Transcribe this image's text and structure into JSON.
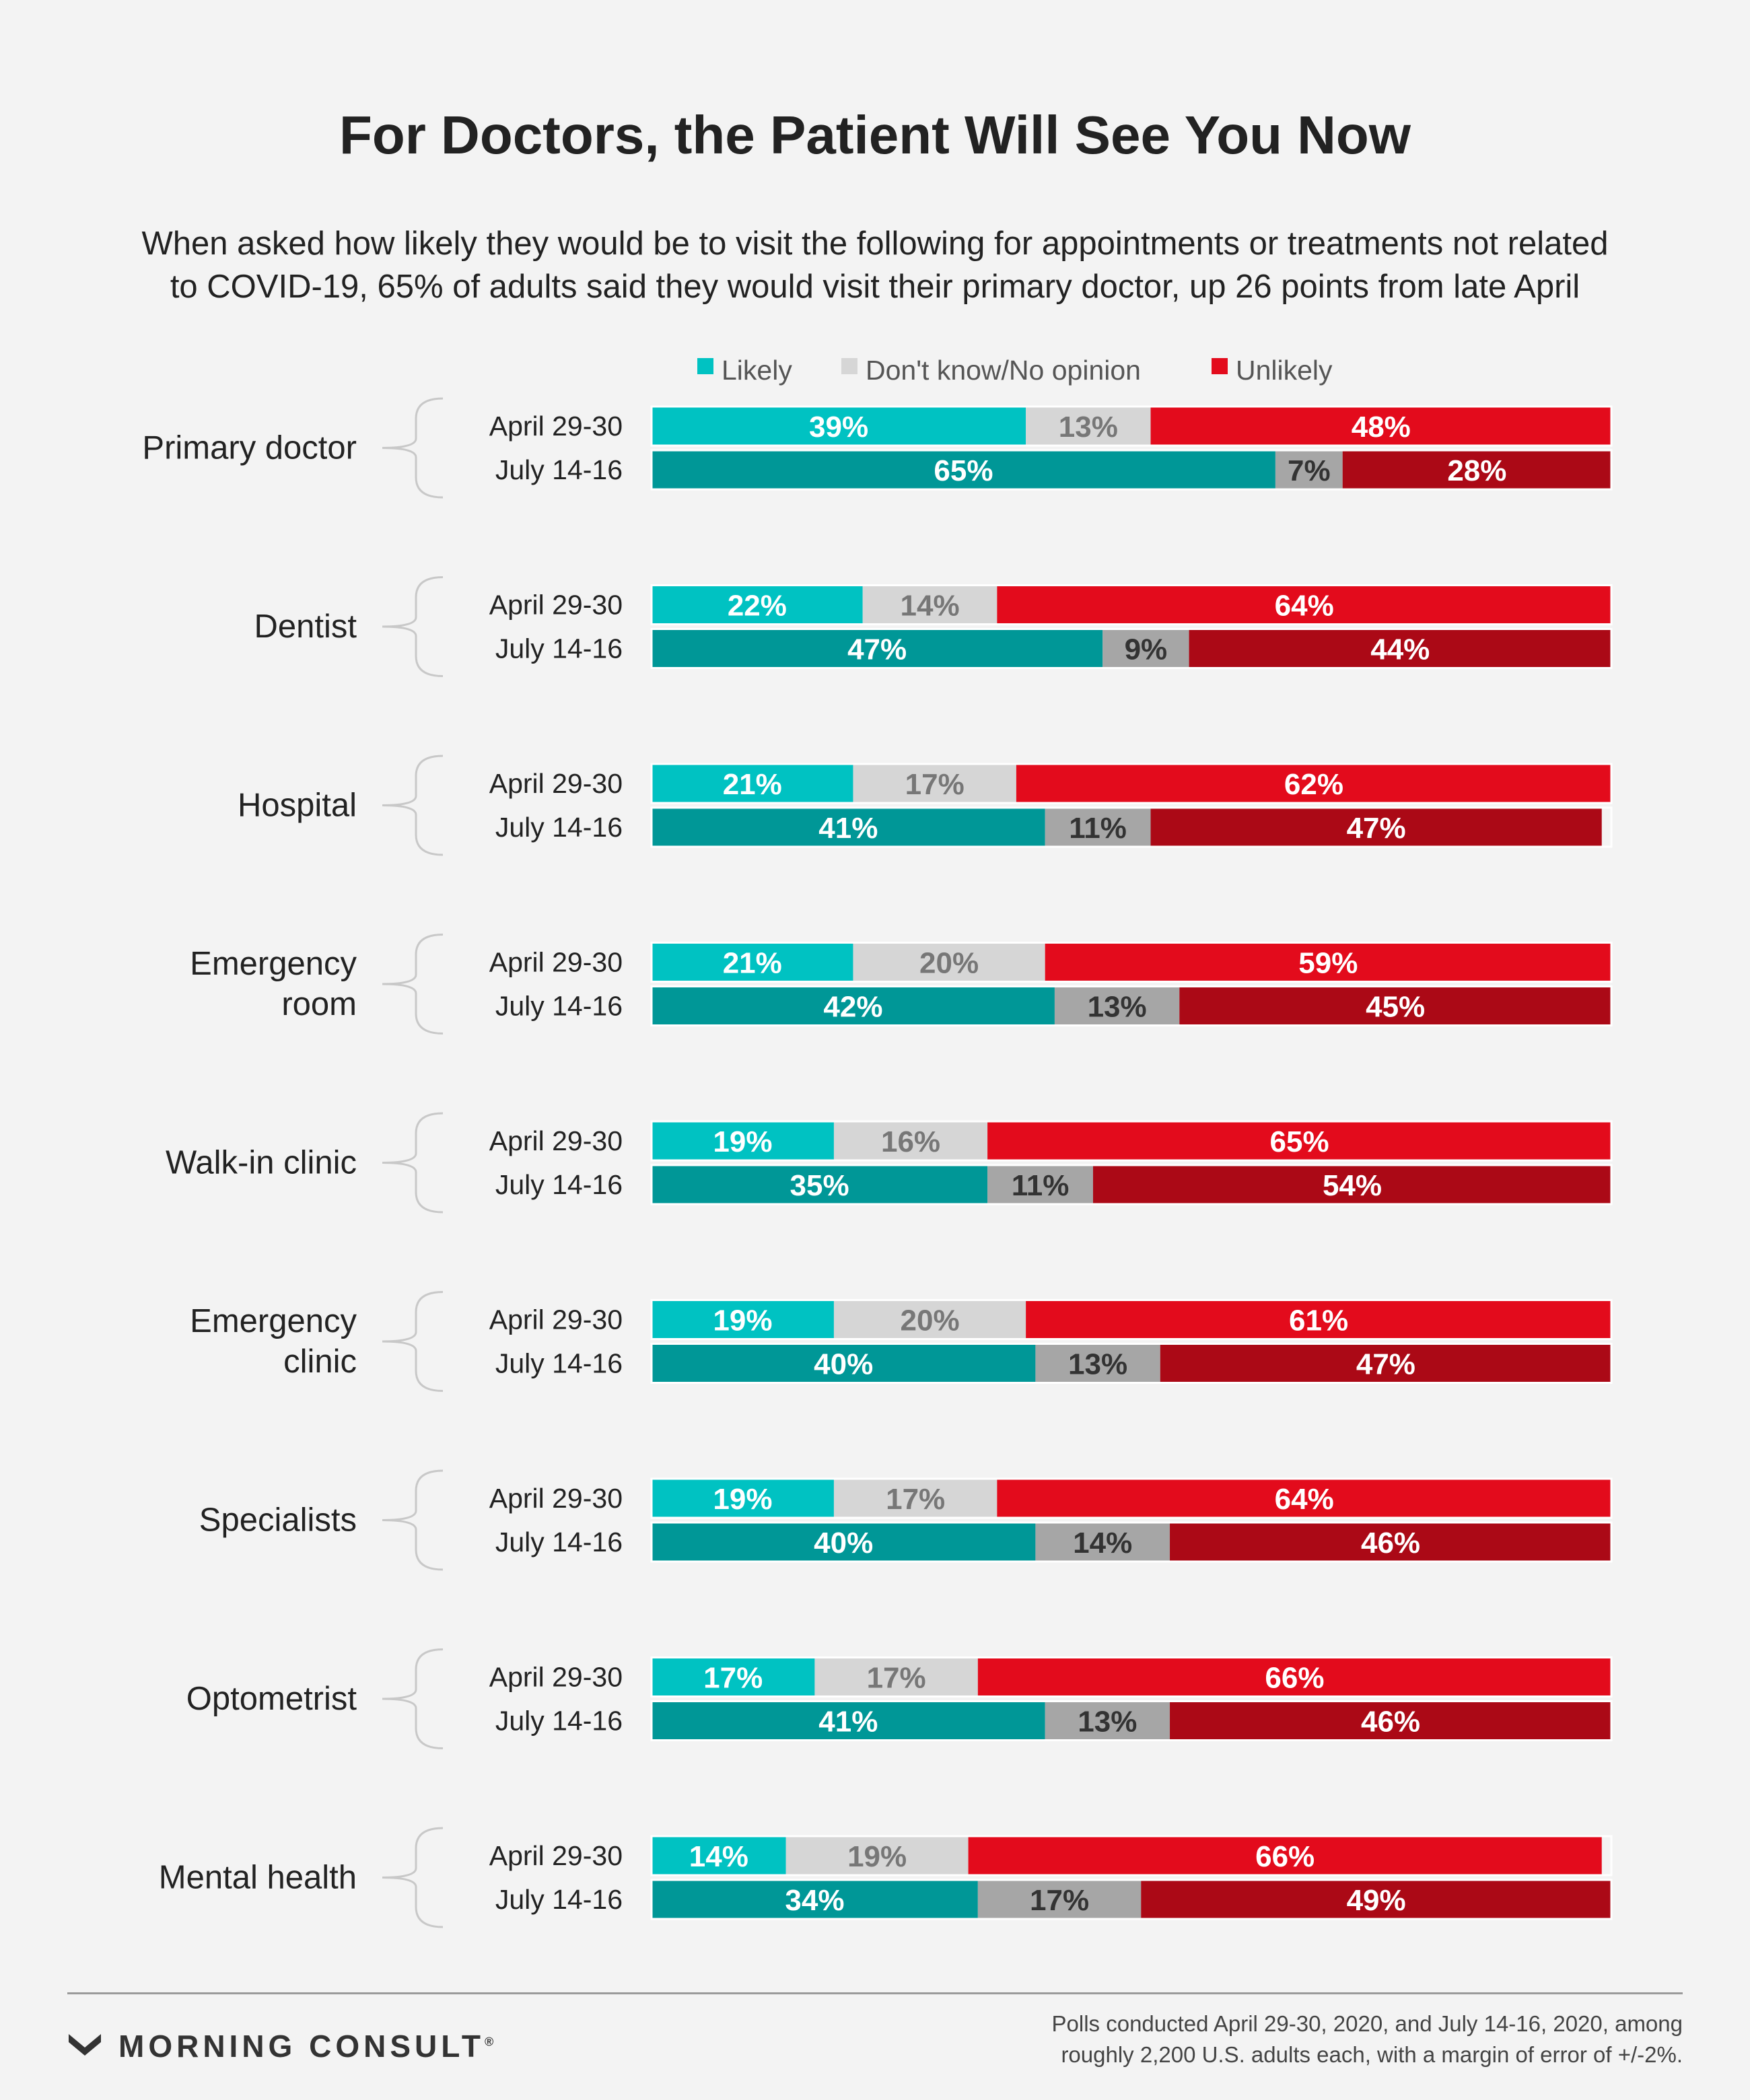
{
  "title": "For Doctors, the Patient Will See You Now",
  "subtitle": [
    "When asked how likely they would be to visit the following for appointments or treatments not related",
    "to COVID-19, 65% of adults said they would visit their primary doctor, up 26 points from late April"
  ],
  "footer": {
    "brand": "MORNING CONSULT",
    "brand_mark": "®",
    "note": [
      "Polls conducted April 29-30, 2020, and July 14-16, 2020, among",
      "roughly 2,200 U.S. adults each, with a margin of error of +/-2%."
    ]
  },
  "chart_data": {
    "type": "bar",
    "orientation": "horizontal",
    "stacked": true,
    "percent_scale": [
      0,
      100
    ],
    "legend": {
      "position": "top",
      "items": [
        {
          "key": "likely",
          "label": "Likely",
          "color": "#00c2c2"
        },
        {
          "key": "dont_know",
          "label": "Don't know/No opinion",
          "color": "#d6d6d6"
        },
        {
          "key": "unlikely",
          "label": "Unlikely",
          "color": "#e30b1c"
        }
      ]
    },
    "period_colors": {
      "April 29-30": {
        "likely": "#00c2c2",
        "dont_know": "#d6d6d6",
        "unlikely": "#e30b1c",
        "label_dont_know": "#777777"
      },
      "July 14-16": {
        "likely": "#009797",
        "dont_know": "#a6a6a6",
        "unlikely": "#ab0916",
        "label_dont_know": "#333333"
      }
    },
    "categories": [
      {
        "label": [
          "Primary doctor"
        ],
        "rows": [
          {
            "period": "April 29-30",
            "likely": 39,
            "dont_know": 13,
            "unlikely": 48
          },
          {
            "period": "July 14-16",
            "likely": 65,
            "dont_know": 7,
            "unlikely": 28
          }
        ]
      },
      {
        "label": [
          "Dentist"
        ],
        "rows": [
          {
            "period": "April 29-30",
            "likely": 22,
            "dont_know": 14,
            "unlikely": 64
          },
          {
            "period": "July 14-16",
            "likely": 47,
            "dont_know": 9,
            "unlikely": 44
          }
        ]
      },
      {
        "label": [
          "Hospital"
        ],
        "rows": [
          {
            "period": "April 29-30",
            "likely": 21,
            "dont_know": 17,
            "unlikely": 62
          },
          {
            "period": "July 14-16",
            "likely": 41,
            "dont_know": 11,
            "unlikely": 47
          }
        ]
      },
      {
        "label": [
          "Emergency",
          "room"
        ],
        "rows": [
          {
            "period": "April 29-30",
            "likely": 21,
            "dont_know": 20,
            "unlikely": 59
          },
          {
            "period": "July 14-16",
            "likely": 42,
            "dont_know": 13,
            "unlikely": 45
          }
        ]
      },
      {
        "label": [
          "Walk-in clinic"
        ],
        "rows": [
          {
            "period": "April 29-30",
            "likely": 19,
            "dont_know": 16,
            "unlikely": 65
          },
          {
            "period": "July 14-16",
            "likely": 35,
            "dont_know": 11,
            "unlikely": 54
          }
        ]
      },
      {
        "label": [
          "Emergency",
          "clinic"
        ],
        "rows": [
          {
            "period": "April 29-30",
            "likely": 19,
            "dont_know": 20,
            "unlikely": 61
          },
          {
            "period": "July 14-16",
            "likely": 40,
            "dont_know": 13,
            "unlikely": 47
          }
        ]
      },
      {
        "label": [
          "Specialists"
        ],
        "rows": [
          {
            "period": "April 29-30",
            "likely": 19,
            "dont_know": 17,
            "unlikely": 64
          },
          {
            "period": "July 14-16",
            "likely": 40,
            "dont_know": 14,
            "unlikely": 46
          }
        ]
      },
      {
        "label": [
          "Optometrist"
        ],
        "rows": [
          {
            "period": "April 29-30",
            "likely": 17,
            "dont_know": 17,
            "unlikely": 66
          },
          {
            "period": "July 14-16",
            "likely": 41,
            "dont_know": 13,
            "unlikely": 46
          }
        ]
      },
      {
        "label": [
          "Mental health"
        ],
        "rows": [
          {
            "period": "April 29-30",
            "likely": 14,
            "dont_know": 19,
            "unlikely": 66
          },
          {
            "period": "July 14-16",
            "likely": 34,
            "dont_know": 17,
            "unlikely": 49
          }
        ]
      }
    ]
  }
}
